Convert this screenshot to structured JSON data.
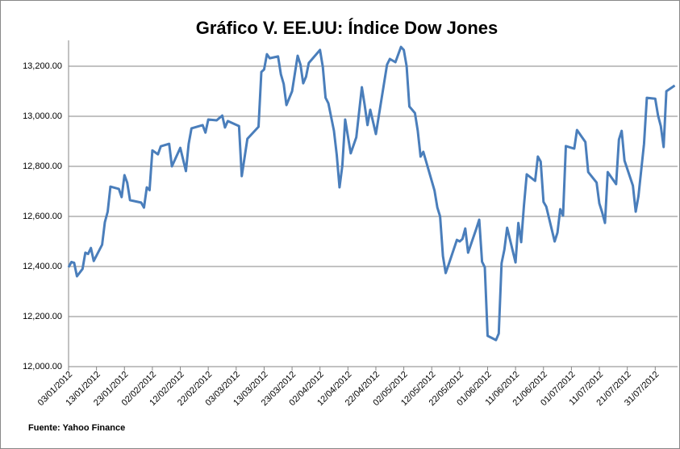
{
  "chart_data": {
    "type": "line",
    "title": "Gráfico V. EE.UU: Índice Dow Jones",
    "source": "Fuente:  Yahoo Finance",
    "x": [
      "03/01/2012",
      "04/01/2012",
      "05/01/2012",
      "06/01/2012",
      "08/01/2012",
      "09/01/2012",
      "10/01/2012",
      "11/01/2012",
      "12/01/2012",
      "15/01/2012",
      "16/01/2012",
      "17/01/2012",
      "18/01/2012",
      "21/01/2012",
      "22/01/2012",
      "23/01/2012",
      "24/01/2012",
      "25/01/2012",
      "29/01/2012",
      "30/01/2012",
      "31/01/2012",
      "01/02/2012",
      "02/02/2012",
      "04/02/2012",
      "05/02/2012",
      "08/02/2012",
      "09/02/2012",
      "12/02/2012",
      "14/02/2012",
      "15/02/2012",
      "16/02/2012",
      "20/02/2012",
      "21/02/2012",
      "22/02/2012",
      "25/02/2012",
      "27/02/2012",
      "28/02/2012",
      "29/02/2012",
      "04/03/2012",
      "05/03/2012",
      "07/03/2012",
      "11/03/2012",
      "12/03/2012",
      "13/03/2012",
      "14/03/2012",
      "15/03/2012",
      "18/03/2012",
      "19/03/2012",
      "20/03/2012",
      "21/03/2012",
      "23/03/2012",
      "25/03/2012",
      "26/03/2012",
      "27/03/2012",
      "28/03/2012",
      "29/03/2012",
      "02/04/2012",
      "03/04/2012",
      "04/04/2012",
      "05/04/2012",
      "07/04/2012",
      "08/04/2012",
      "09/04/2012",
      "10/04/2012",
      "11/04/2012",
      "13/04/2012",
      "15/04/2012",
      "17/04/2012",
      "18/04/2012",
      "19/04/2012",
      "20/04/2012",
      "22/04/2012",
      "26/04/2012",
      "27/04/2012",
      "29/04/2012",
      "01/05/2012",
      "02/05/2012",
      "03/05/2012",
      "04/05/2012",
      "06/05/2012",
      "07/05/2012",
      "08/05/2012",
      "09/05/2012",
      "13/05/2012",
      "14/05/2012",
      "15/05/2012",
      "16/05/2012",
      "17/05/2012",
      "18/05/2012",
      "21/05/2012",
      "22/05/2012",
      "23/05/2012",
      "24/05/2012",
      "25/05/2012",
      "28/05/2012",
      "29/05/2012",
      "30/05/2012",
      "31/05/2012",
      "01/06/2012",
      "04/06/2012",
      "05/06/2012",
      "06/06/2012",
      "07/06/2012",
      "08/06/2012",
      "11/06/2012",
      "12/06/2012",
      "13/06/2012",
      "14/06/2012",
      "15/06/2012",
      "18/06/2012",
      "19/06/2012",
      "20/06/2012",
      "21/06/2012",
      "22/06/2012",
      "25/06/2012",
      "26/06/2012",
      "27/06/2012",
      "28/06/2012",
      "29/06/2012",
      "02/07/2012",
      "03/07/2012",
      "06/07/2012",
      "07/07/2012",
      "10/07/2012",
      "11/07/2012",
      "12/07/2012",
      "13/07/2012",
      "14/07/2012",
      "17/07/2012",
      "18/07/2012",
      "19/07/2012",
      "20/07/2012",
      "23/07/2012",
      "24/07/2012",
      "25/07/2012",
      "27/07/2012",
      "28/07/2012",
      "31/07/2012",
      "01/08/2012",
      "02/08/2012",
      "03/08/2012",
      "04/08/2012",
      "07/08/2012"
    ],
    "series": [
      {
        "color": "#4a7ebb",
        "values": [
          12397,
          12418,
          12415,
          12361,
          12390,
          12455,
          12450,
          12474,
          12422,
          12487,
          12577,
          12619,
          12719,
          12710,
          12677,
          12765,
          12735,
          12665,
          12655,
          12635,
          12716,
          12705,
          12864,
          12848,
          12880,
          12890,
          12800,
          12874,
          12781,
          12890,
          12952,
          12965,
          12935,
          12987,
          12984,
          13003,
          12955,
          12981,
          12961,
          12761,
          12910,
          12958,
          13177,
          13187,
          13248,
          13232,
          13239,
          13168,
          13129,
          13045,
          13100,
          13242,
          13206,
          13132,
          13158,
          13213,
          13265,
          13197,
          13074,
          13052,
          12942,
          12845,
          12716,
          12803,
          12987,
          12852,
          12916,
          13116,
          13045,
          12965,
          13026,
          12929,
          13206,
          13229,
          13216,
          13277,
          13265,
          13200,
          13039,
          13013,
          12942,
          12839,
          12858,
          12703,
          12635,
          12600,
          12442,
          12374,
          12406,
          12506,
          12500,
          12510,
          12552,
          12455,
          12552,
          12587,
          12419,
          12397,
          12123,
          12106,
          12132,
          12413,
          12468,
          12555,
          12416,
          12574,
          12497,
          12642,
          12768,
          12742,
          12839,
          12819,
          12658,
          12639,
          12500,
          12535,
          12629,
          12603,
          12881,
          12871,
          12945,
          12897,
          12777,
          12735,
          12652,
          12616,
          12574,
          12777,
          12729,
          12907,
          12942,
          12823,
          12723,
          12619,
          12681,
          12890,
          13074,
          13070,
          13003,
          12961,
          12877,
          13100,
          13123
        ]
      }
    ],
    "xlim": [
      "03/01/2012",
      "08/08/2012"
    ],
    "xticks": [
      "03/01/2012",
      "13/01/2012",
      "23/01/2012",
      "02/02/2012",
      "12/02/2012",
      "22/02/2012",
      "03/03/2012",
      "13/03/2012",
      "23/03/2012",
      "02/04/2012",
      "12/04/2012",
      "22/04/2012",
      "02/05/2012",
      "12/05/2012",
      "22/05/2012",
      "01/06/2012",
      "11/06/2012",
      "21/06/2012",
      "01/07/2012",
      "11/07/2012",
      "21/07/2012",
      "31/07/2012"
    ],
    "ylim": [
      12000,
      13400
    ],
    "yticks": [
      {
        "value": 12000,
        "label": "12,000.00"
      },
      {
        "value": 12200,
        "label": "12,200.00"
      },
      {
        "value": 12400,
        "label": "12,400.00"
      },
      {
        "value": 12600,
        "label": "12,600.00"
      },
      {
        "value": 12800,
        "label": "12,800.00"
      },
      {
        "value": 13000,
        "label": "13,000.00"
      },
      {
        "value": 13200,
        "label": "13,200.00"
      }
    ],
    "grid": true
  }
}
